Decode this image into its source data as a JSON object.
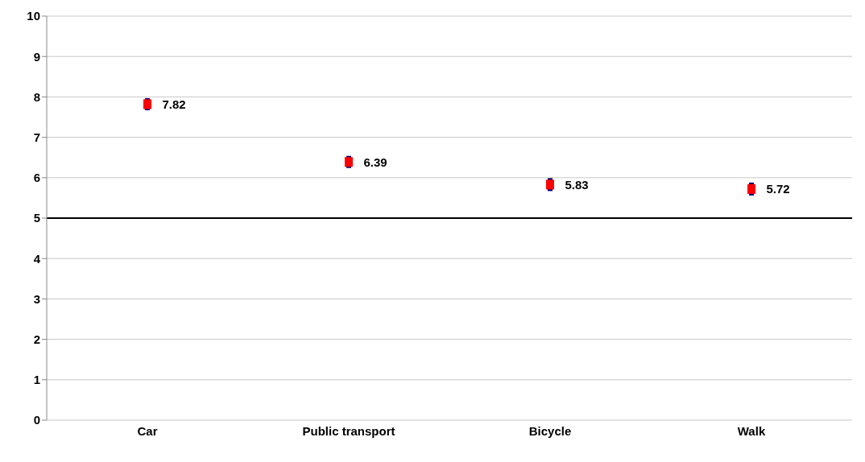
{
  "chart_data": {
    "type": "scatter",
    "categories": [
      "Car",
      "Public transport",
      "Bicycle",
      "Walk"
    ],
    "series": [
      {
        "color": "#ff0000",
        "values": [
          7.82,
          6.39,
          5.83,
          5.72
        ],
        "errors": [
          0.15,
          0.15,
          0.16,
          0.16
        ]
      }
    ],
    "ylim": [
      0,
      10
    ],
    "yticks": [
      0,
      1,
      2,
      3,
      4,
      5,
      6,
      7,
      8,
      9,
      10
    ],
    "grid": "y",
    "marker": "square",
    "data_labels": true,
    "legend": false,
    "ref_lines": [
      {
        "axis": "y",
        "value": 5,
        "color": "#000000"
      }
    ]
  }
}
